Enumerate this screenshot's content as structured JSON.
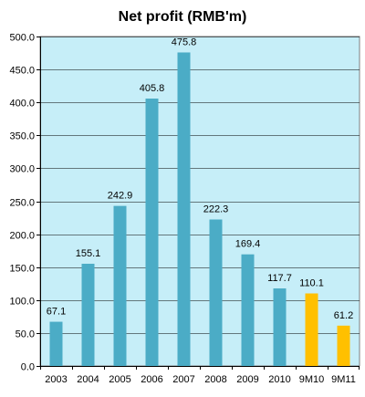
{
  "chart_data": {
    "type": "bar",
    "title": "Net profit (RMB'm)",
    "xlabel": "",
    "ylabel": "",
    "categories": [
      "2003",
      "2004",
      "2005",
      "2006",
      "2007",
      "2008",
      "2009",
      "2010",
      "9M10",
      "9M11"
    ],
    "values": [
      67.1,
      155.1,
      242.9,
      405.8,
      475.8,
      222.3,
      169.4,
      117.7,
      110.1,
      61.2
    ],
    "data_labels": [
      "67.1",
      "155.1",
      "242.9",
      "405.8",
      "475.8",
      "222.3",
      "169.4",
      "117.7",
      "110.1",
      "61.2"
    ],
    "ylim": [
      0,
      500
    ],
    "yticks": [
      "0.0",
      "50.0",
      "100.0",
      "150.0",
      "200.0",
      "250.0",
      "300.0",
      "350.0",
      "400.0",
      "450.0",
      "500.0"
    ],
    "grid": true,
    "legend": "none",
    "colors": {
      "bar_default": "#4BACC6",
      "bar_highlight": "#FFC000",
      "plot_background": "#C6EEF8",
      "gridline": "#000000",
      "highlight_categories": [
        "9M10",
        "9M11"
      ]
    }
  }
}
